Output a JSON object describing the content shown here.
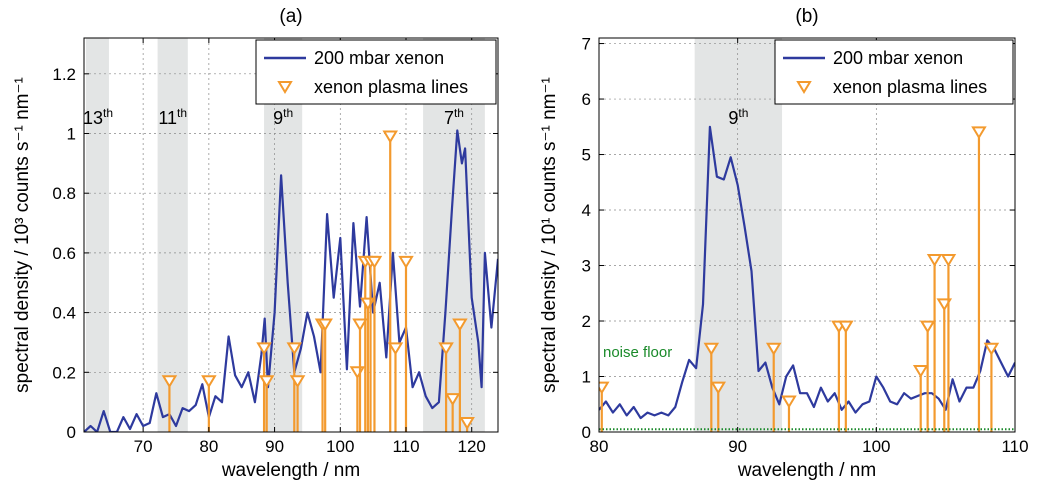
{
  "chart_data": [
    {
      "type": "line",
      "title": "(a)",
      "xlabel": "wavelength / nm",
      "ylabel": "spectral density / 10³ counts s⁻¹ nm⁻¹",
      "xlim": [
        61,
        124
      ],
      "ylim": [
        0,
        1.32
      ],
      "xticks": [
        70,
        80,
        90,
        100,
        110,
        120
      ],
      "yticks": [
        0,
        0.2,
        0.4,
        0.6,
        0.8,
        1,
        1.2
      ],
      "ytick_labels": [
        "0",
        "0.2",
        "0.4",
        "0.6",
        "0.8",
        "1",
        "1.2"
      ],
      "grid": true,
      "legend_position": "top-right",
      "shaded_bands": [
        {
          "label": "13",
          "sup": "th",
          "range": [
            61.3,
            64.8
          ]
        },
        {
          "label": "11",
          "sup": "th",
          "range": [
            72.2,
            76.8
          ]
        },
        {
          "label": "9",
          "sup": "th",
          "range": [
            88.4,
            94.2
          ]
        },
        {
          "label": "7",
          "sup": "th",
          "range": [
            112.6,
            122.0
          ]
        }
      ],
      "series": [
        {
          "name": "200 mbar xenon",
          "kind": "line",
          "color": "#2e3a9e",
          "x": [
            61,
            62,
            63,
            64,
            65,
            66,
            67,
            68,
            69,
            70,
            71,
            72,
            73,
            74,
            75,
            76,
            77,
            78,
            79,
            80,
            81,
            82,
            83,
            84,
            85,
            86,
            87,
            88,
            88.5,
            89,
            90,
            91,
            92,
            93,
            94,
            95,
            96,
            97,
            98,
            99,
            100,
            101,
            102,
            103,
            104,
            105,
            106,
            107,
            108,
            109,
            110,
            111,
            112,
            113,
            114,
            115,
            116,
            117,
            117.8,
            118.5,
            119,
            120,
            121,
            121.5,
            122,
            123,
            124
          ],
          "y": [
            0.0,
            0.02,
            0.0,
            0.07,
            0.0,
            0.0,
            0.05,
            0.01,
            0.06,
            0.02,
            0.03,
            0.13,
            0.05,
            0.06,
            0.02,
            0.08,
            0.07,
            0.09,
            0.16,
            0.05,
            0.12,
            0.1,
            0.32,
            0.19,
            0.15,
            0.2,
            0.1,
            0.26,
            0.38,
            0.15,
            0.4,
            0.86,
            0.5,
            0.2,
            0.28,
            0.4,
            0.32,
            0.2,
            0.73,
            0.45,
            0.65,
            0.21,
            0.7,
            0.42,
            0.72,
            0.4,
            0.5,
            0.25,
            0.6,
            0.3,
            0.35,
            0.15,
            0.2,
            0.12,
            0.08,
            0.1,
            0.4,
            0.75,
            1.01,
            0.9,
            0.95,
            0.45,
            0.3,
            0.15,
            0.6,
            0.35,
            0.58
          ]
        },
        {
          "name": "xenon plasma lines",
          "kind": "stem",
          "color": "#f39a2e",
          "x": [
            74,
            80,
            88.4,
            88.8,
            93,
            93.5,
            97.3,
            97.7,
            102.6,
            103,
            103.8,
            104.2,
            104.6,
            105.2,
            107.6,
            108.4,
            110,
            116.1,
            117.1,
            118.2,
            119.3
          ],
          "y": [
            0.17,
            0.17,
            0.28,
            0.17,
            0.28,
            0.17,
            0.36,
            0.36,
            0.2,
            0.36,
            0.57,
            0.43,
            0.57,
            0.57,
            0.99,
            0.28,
            0.57,
            0.28,
            0.11,
            0.36,
            0.03
          ]
        }
      ]
    },
    {
      "type": "line",
      "title": "(b)",
      "xlabel": "wavelength / nm",
      "ylabel": "spectral density / 10¹ counts s⁻¹ nm⁻¹",
      "xlim": [
        80,
        110
      ],
      "ylim": [
        0,
        7.1
      ],
      "xticks": [
        80,
        90,
        100,
        110
      ],
      "yticks": [
        0,
        1,
        2,
        3,
        4,
        5,
        6,
        7
      ],
      "ytick_labels": [
        "0",
        "1",
        "2",
        "3",
        "4",
        "5",
        "6",
        "7"
      ],
      "grid": true,
      "legend_position": "top-right",
      "shaded_bands": [
        {
          "label": "9",
          "sup": "th",
          "range": [
            86.9,
            93.2
          ]
        }
      ],
      "annotations": [
        {
          "text": "noise floor",
          "color": "#1a8a2a",
          "y": 0.05
        }
      ],
      "series": [
        {
          "name": "200 mbar xenon",
          "kind": "line",
          "color": "#2e3a9e",
          "x": [
            80,
            80.5,
            81,
            81.5,
            82,
            82.5,
            83,
            83.5,
            84,
            84.5,
            85,
            85.5,
            86,
            86.5,
            87,
            87.5,
            88,
            88.5,
            89,
            89.5,
            90,
            90.5,
            91,
            91.5,
            92,
            92.5,
            93,
            93.5,
            94,
            94.5,
            95,
            95.5,
            96,
            96.5,
            97,
            97.5,
            98,
            98.5,
            99,
            99.5,
            100,
            100.5,
            101,
            101.5,
            102,
            102.5,
            103,
            103.5,
            104,
            104.5,
            105,
            105.5,
            106,
            106.5,
            107,
            107.5,
            108,
            108.5,
            109,
            109.5,
            110
          ],
          "y": [
            0.4,
            0.55,
            0.35,
            0.5,
            0.3,
            0.45,
            0.25,
            0.35,
            0.3,
            0.35,
            0.3,
            0.45,
            0.9,
            1.3,
            1.15,
            2.3,
            5.5,
            4.6,
            4.55,
            4.95,
            4.45,
            3.7,
            2.9,
            1.1,
            1.25,
            0.8,
            0.5,
            1.0,
            1.2,
            0.7,
            0.7,
            0.45,
            0.8,
            0.55,
            0.7,
            0.4,
            0.55,
            0.35,
            0.5,
            0.55,
            1.0,
            0.8,
            0.55,
            0.5,
            0.7,
            0.6,
            0.65,
            0.7,
            0.7,
            0.6,
            0.4,
            0.95,
            0.55,
            0.8,
            0.8,
            1.1,
            1.65,
            1.5,
            1.25,
            1.0,
            1.25
          ]
        },
        {
          "name": "xenon plasma lines",
          "kind": "stem",
          "color": "#f39a2e",
          "x": [
            80.2,
            88.1,
            88.6,
            92.6,
            93.7,
            97.3,
            97.8,
            103.2,
            103.7,
            104.2,
            104.9,
            105.2,
            107.4,
            108.3
          ],
          "y": [
            0.8,
            1.5,
            0.8,
            1.5,
            0.55,
            1.9,
            1.9,
            1.1,
            1.9,
            3.1,
            2.3,
            3.1,
            5.4,
            1.5
          ]
        },
        {
          "name": "noise floor",
          "kind": "dotted",
          "color": "#1a8a2a",
          "x": [
            80,
            110
          ],
          "y": [
            0.05,
            0.05
          ]
        }
      ]
    }
  ]
}
